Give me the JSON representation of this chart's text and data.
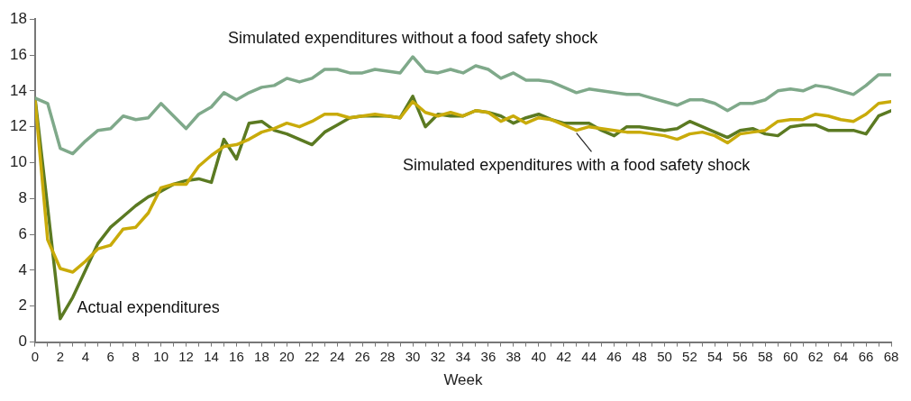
{
  "chart_data": {
    "type": "line",
    "xlabel": "Week",
    "x": [
      0,
      1,
      2,
      3,
      4,
      5,
      6,
      7,
      8,
      9,
      10,
      11,
      12,
      13,
      14,
      15,
      16,
      17,
      18,
      19,
      20,
      21,
      22,
      23,
      24,
      25,
      26,
      27,
      28,
      29,
      30,
      31,
      32,
      33,
      34,
      35,
      36,
      37,
      38,
      39,
      40,
      41,
      42,
      43,
      44,
      45,
      46,
      47,
      48,
      49,
      50,
      51,
      52,
      53,
      54,
      55,
      56,
      57,
      58,
      59,
      60,
      61,
      62,
      63,
      64,
      65,
      66,
      67,
      68
    ],
    "series": [
      {
        "name": "Simulated expenditures without a food safety shock",
        "color": "#7fa98a",
        "values": [
          13.6,
          13.3,
          10.8,
          10.5,
          11.2,
          11.8,
          11.9,
          12.6,
          12.4,
          12.5,
          13.3,
          12.6,
          11.9,
          12.7,
          13.1,
          13.9,
          13.5,
          13.9,
          14.2,
          14.3,
          14.7,
          14.5,
          14.7,
          15.2,
          15.2,
          15.0,
          15.0,
          15.2,
          15.1,
          15.0,
          15.9,
          15.1,
          15.0,
          15.2,
          15.0,
          15.4,
          15.2,
          14.7,
          15.0,
          14.6,
          14.6,
          14.5,
          14.2,
          13.9,
          14.1,
          14.0,
          13.9,
          13.8,
          13.8,
          13.6,
          13.4,
          13.2,
          13.5,
          13.5,
          13.3,
          12.9,
          13.3,
          13.3,
          13.5,
          14.0,
          14.1,
          14.0,
          14.3,
          14.2,
          14.0,
          13.8,
          14.3,
          14.9,
          14.9
        ]
      },
      {
        "name": "Simulated expenditures with a food safety shock",
        "color": "#c9ab0a",
        "values": [
          13.5,
          5.7,
          4.1,
          3.9,
          4.5,
          5.2,
          5.4,
          6.3,
          6.4,
          7.2,
          8.6,
          8.8,
          8.8,
          9.8,
          10.4,
          10.9,
          11.0,
          11.3,
          11.7,
          11.9,
          12.2,
          12.0,
          12.3,
          12.7,
          12.7,
          12.5,
          12.6,
          12.7,
          12.6,
          12.5,
          13.4,
          12.8,
          12.6,
          12.8,
          12.6,
          12.9,
          12.8,
          12.3,
          12.6,
          12.2,
          12.5,
          12.4,
          12.1,
          11.8,
          12.0,
          11.9,
          11.8,
          11.7,
          11.7,
          11.6,
          11.5,
          11.3,
          11.6,
          11.7,
          11.5,
          11.1,
          11.6,
          11.7,
          11.8,
          12.3,
          12.4,
          12.4,
          12.7,
          12.6,
          12.4,
          12.3,
          12.7,
          13.3,
          13.4
        ]
      },
      {
        "name": "Actual expenditures",
        "color": "#5b7a22",
        "values": [
          13.6,
          7.5,
          1.3,
          2.5,
          4.0,
          5.5,
          6.4,
          7.0,
          7.6,
          8.1,
          8.4,
          8.8,
          9.0,
          9.1,
          8.9,
          11.3,
          10.2,
          12.2,
          12.3,
          11.8,
          11.6,
          11.3,
          11.0,
          11.7,
          12.1,
          12.5,
          12.6,
          12.6,
          12.6,
          12.5,
          13.7,
          12.0,
          12.7,
          12.6,
          12.6,
          12.9,
          12.8,
          12.6,
          12.2,
          12.5,
          12.7,
          12.4,
          12.2,
          12.2,
          12.2,
          11.8,
          11.5,
          12.0,
          12.0,
          11.9,
          11.8,
          11.9,
          12.3,
          12.0,
          11.7,
          11.4,
          11.8,
          11.9,
          11.6,
          11.5,
          12.0,
          12.1,
          12.1,
          11.8,
          11.8,
          11.8,
          11.6,
          12.6,
          12.9
        ]
      }
    ],
    "xlim": [
      0,
      68
    ],
    "xticks": [
      0,
      {
        "value": 1,
        "label": null
      },
      2,
      {
        "value": 3,
        "label": null
      },
      4,
      {
        "value": 5,
        "label": null
      },
      6,
      {
        "value": 7,
        "label": null
      },
      8,
      {
        "value": 9,
        "label": null
      },
      10,
      {
        "value": 11,
        "label": null
      },
      12,
      {
        "value": 13,
        "label": null
      },
      14,
      {
        "value": 15,
        "label": null
      },
      16,
      {
        "value": 17,
        "label": null
      },
      18,
      {
        "value": 19,
        "label": null
      },
      20,
      {
        "value": 21,
        "label": null
      },
      22,
      {
        "value": 23,
        "label": null
      },
      24,
      {
        "value": 25,
        "label": null
      },
      26,
      {
        "value": 27,
        "label": null
      },
      28,
      {
        "value": 29,
        "label": null
      },
      30,
      {
        "value": 31,
        "label": null
      },
      32,
      {
        "value": 33,
        "label": null
      },
      34,
      {
        "value": 35,
        "label": null
      },
      36,
      {
        "value": 37,
        "label": null
      },
      38,
      {
        "value": 39,
        "label": null
      },
      40,
      {
        "value": 41,
        "label": null
      },
      42,
      {
        "value": 43,
        "label": null
      },
      44,
      {
        "value": 45,
        "label": null
      },
      46,
      {
        "value": 47,
        "label": null
      },
      48,
      {
        "value": 49,
        "label": null
      },
      50,
      {
        "value": 51,
        "label": null
      },
      52,
      {
        "value": 53,
        "label": null
      },
      54,
      {
        "value": 55,
        "label": null
      },
      56,
      {
        "value": 57,
        "label": null
      },
      58,
      {
        "value": 59,
        "label": null
      },
      60,
      {
        "value": 61,
        "label": null
      },
      62,
      {
        "value": 63,
        "label": null
      },
      64,
      {
        "value": 65,
        "label": null
      },
      66,
      {
        "value": 67,
        "label": null
      },
      68
    ],
    "ylim": [
      0,
      18
    ],
    "yticks": [
      0,
      2,
      4,
      6,
      8,
      10,
      12,
      14,
      16,
      18
    ],
    "grid": false,
    "legend": false,
    "marker": "none",
    "line_style": "solid"
  }
}
